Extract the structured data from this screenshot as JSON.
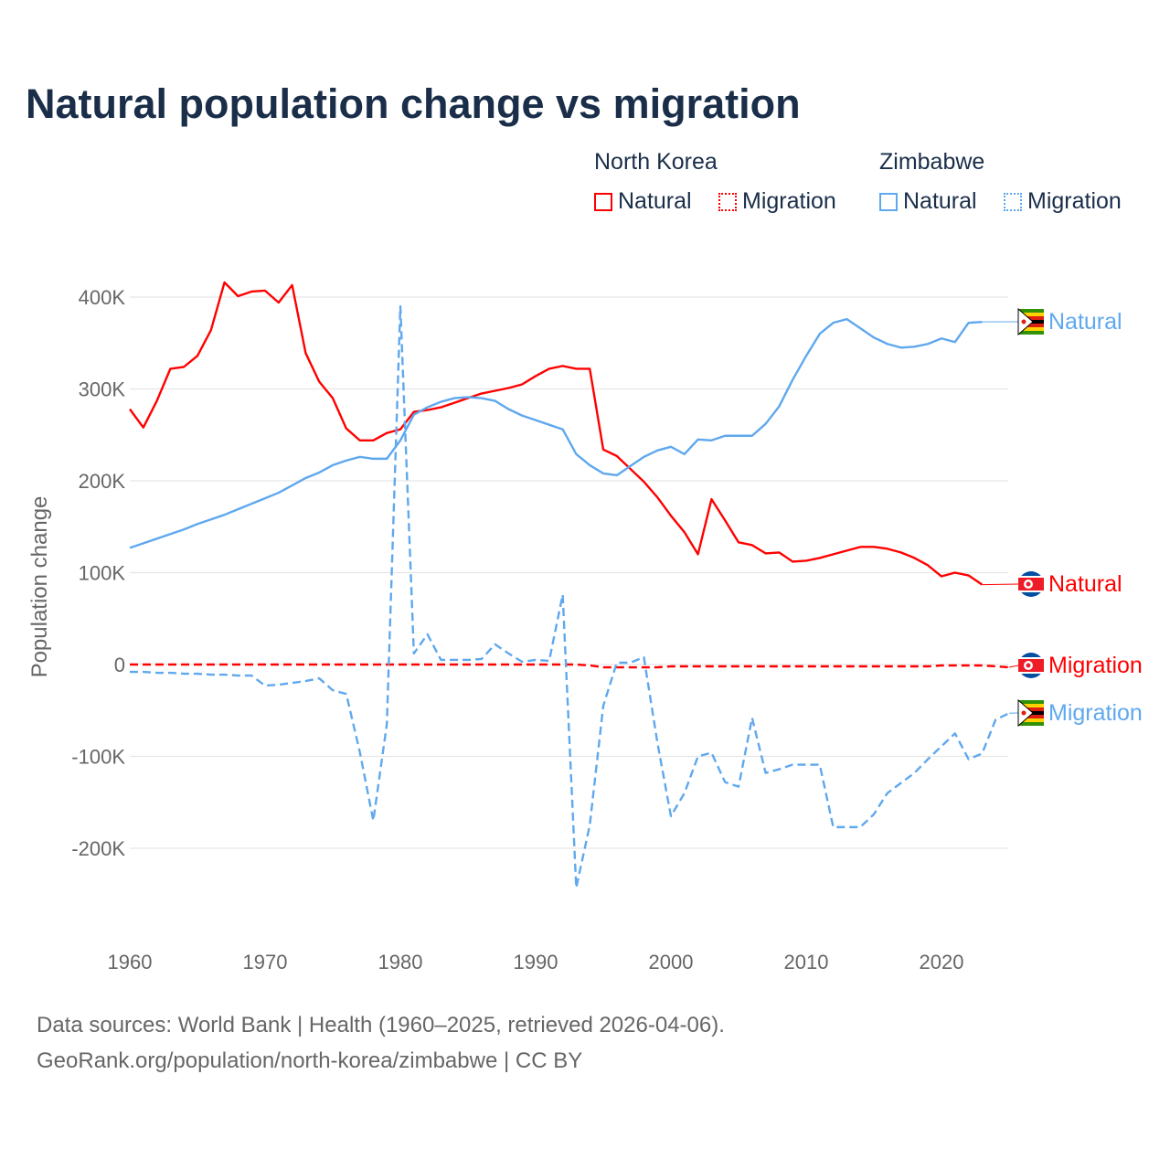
{
  "title": "Natural population change vs migration",
  "legend": {
    "groups": [
      {
        "country": "North Korea",
        "color": "#ff0000",
        "items": [
          "Natural",
          "Migration"
        ]
      },
      {
        "country": "Zimbabwe",
        "color": "#5fa8ee",
        "items": [
          "Natural",
          "Migration"
        ]
      }
    ]
  },
  "footer": {
    "line1": "Data sources: World Bank | Health (1960–2025, retrieved 2026-04-06).",
    "line2": "GeoRank.org/population/north-korea/zimbabwe | CC BY"
  },
  "chart_data": {
    "type": "line",
    "ylabel": "Population change",
    "xlabel": "",
    "xlim": [
      1960,
      2025
    ],
    "ylim": [
      -300000,
      450000
    ],
    "xticks": [
      1960,
      1970,
      1980,
      1990,
      2000,
      2010,
      2020
    ],
    "xtick_labels": [
      "1960",
      "1970",
      "1980",
      "1990",
      "2000",
      "2010",
      "2020"
    ],
    "yticks": [
      -200000,
      -100000,
      0,
      100000,
      200000,
      300000,
      400000
    ],
    "ytick_labels": [
      "-200K",
      "-100K",
      "0",
      "100K",
      "200K",
      "300K",
      "400K"
    ],
    "grid": true,
    "series": [
      {
        "name": "North Korea Natural",
        "end_label": "Natural",
        "color": "#ff0000",
        "dash": false,
        "start": 1960,
        "values_k": [
          278,
          258,
          287,
          322,
          324,
          336,
          364,
          416,
          401,
          406,
          407,
          394,
          413,
          339,
          308,
          290,
          257,
          244,
          244,
          252,
          256,
          275,
          277,
          280,
          285,
          290,
          295,
          298,
          301,
          305,
          314,
          322,
          325,
          322,
          322,
          234,
          227,
          213,
          199,
          182,
          162,
          144,
          120,
          180,
          157,
          133,
          130,
          121,
          122,
          112,
          113,
          116,
          120,
          124,
          128,
          128,
          126,
          122,
          116,
          108,
          96,
          100,
          97,
          87
        ]
      },
      {
        "name": "Zimbabwe Natural",
        "end_label": "Natural",
        "color": "#5fa8ee",
        "dash": false,
        "start": 1960,
        "values_k": [
          127,
          132,
          137,
          142,
          147,
          153,
          158,
          163,
          169,
          175,
          181,
          187,
          195,
          203,
          209,
          217,
          222,
          226,
          224,
          224,
          244,
          272,
          280,
          286,
          290,
          291,
          290,
          287,
          278,
          271,
          266,
          261,
          256,
          229,
          217,
          208,
          206,
          216,
          226,
          233,
          237,
          229,
          245,
          244,
          249,
          249,
          249,
          262,
          281,
          310,
          336,
          360,
          372,
          376,
          366,
          356,
          349,
          345,
          346,
          349,
          355,
          351,
          372,
          373
        ]
      },
      {
        "name": "North Korea Migration",
        "end_label": "Migration",
        "color": "#ff0000",
        "dash": true,
        "start": 1960,
        "values_k": [
          0,
          0,
          0,
          0,
          0,
          0,
          0,
          0,
          0,
          0,
          0,
          0,
          0,
          0,
          0,
          0,
          0,
          0,
          0,
          0,
          0,
          0,
          0,
          0,
          0,
          0,
          0,
          0,
          0,
          0,
          0,
          0,
          0,
          0,
          -1,
          -3,
          -3,
          -3,
          -3,
          -3,
          -2,
          -2,
          -2,
          -2,
          -2,
          -2,
          -2,
          -2,
          -2,
          -2,
          -2,
          -2,
          -2,
          -2,
          -2,
          -2,
          -2,
          -2,
          -2,
          -2,
          -1,
          -1,
          -1,
          -1,
          -2,
          -3
        ]
      },
      {
        "name": "Zimbabwe Migration",
        "end_label": "Migration",
        "color": "#5fa8ee",
        "dash": true,
        "start": 1960,
        "values_k": [
          -8,
          -8,
          -9,
          -9,
          -10,
          -10,
          -11,
          -11,
          -12,
          -12,
          -23,
          -22,
          -20,
          -18,
          -15,
          -28,
          -32,
          -95,
          -170,
          -65,
          390,
          12,
          33,
          5,
          5,
          5,
          6,
          22,
          12,
          3,
          5,
          4,
          76,
          -243,
          -175,
          -45,
          2,
          2,
          8,
          -85,
          -165,
          -140,
          -100,
          -96,
          -128,
          -133,
          -58,
          -118,
          -114,
          -109,
          -109,
          -109,
          -177,
          -177,
          -177,
          -163,
          -140,
          -129,
          -118,
          -103,
          -89,
          -75,
          -103,
          -97,
          -60,
          -53
        ]
      }
    ]
  }
}
